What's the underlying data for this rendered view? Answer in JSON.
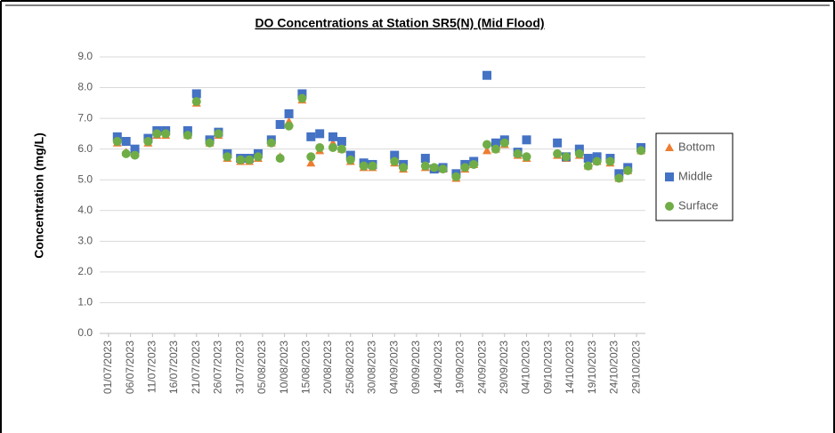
{
  "chart_data": {
    "type": "scatter",
    "title": "DO Concentrations at Station SR5(N) (Mid Flood)",
    "y_label": "Concentration (mg/L)",
    "x": [
      "03/07/2023",
      "05/07/2023",
      "07/07/2023",
      "10/07/2023",
      "12/07/2023",
      "14/07/2023",
      "19/07/2023",
      "21/07/2023",
      "24/07/2023",
      "26/07/2023",
      "28/07/2023",
      "31/07/2023",
      "02/08/2023",
      "04/08/2023",
      "07/08/2023",
      "09/08/2023",
      "11/08/2023",
      "14/08/2023",
      "16/08/2023",
      "18/08/2023",
      "21/08/2023",
      "23/08/2023",
      "25/08/2023",
      "28/08/2023",
      "30/08/2023",
      "04/09/2023",
      "06/09/2023",
      "11/09/2023",
      "13/09/2023",
      "15/09/2023",
      "18/09/2023",
      "20/09/2023",
      "22/09/2023",
      "25/09/2023",
      "27/09/2023",
      "29/09/2023",
      "02/10/2023",
      "04/10/2023",
      "11/10/2023",
      "13/10/2023",
      "16/10/2023",
      "18/10/2023",
      "20/10/2023",
      "23/10/2023",
      "25/10/2023",
      "27/10/2023",
      "30/10/2023"
    ],
    "series": [
      {
        "name": "Bottom",
        "color": "#ed7d31",
        "marker": "triangle",
        "values": [
          6.2,
          5.9,
          5.85,
          6.2,
          6.45,
          6.45,
          6.45,
          7.5,
          6.2,
          6.45,
          5.7,
          5.6,
          5.6,
          5.7,
          6.2,
          5.75,
          6.9,
          7.6,
          5.55,
          5.95,
          6.2,
          6.0,
          5.6,
          5.4,
          5.4,
          5.55,
          5.35,
          5.4,
          5.35,
          5.35,
          5.05,
          5.35,
          5.5,
          5.95,
          6.0,
          6.15,
          5.8,
          5.7,
          5.8,
          5.7,
          5.8,
          5.45,
          5.6,
          5.55,
          5.05,
          5.3,
          5.95
        ]
      },
      {
        "name": "Middle",
        "color": "#4472c4",
        "marker": "square",
        "values": [
          6.4,
          6.25,
          6.0,
          6.35,
          6.6,
          6.6,
          6.6,
          7.8,
          6.3,
          6.55,
          5.85,
          5.7,
          5.7,
          5.85,
          6.3,
          6.8,
          7.15,
          7.8,
          6.4,
          6.5,
          6.4,
          6.25,
          5.8,
          5.55,
          5.5,
          5.8,
          5.5,
          5.7,
          5.35,
          5.4,
          5.2,
          5.5,
          5.6,
          8.4,
          6.2,
          6.3,
          5.9,
          6.3,
          6.2,
          5.75,
          6.0,
          5.7,
          5.75,
          5.7,
          5.2,
          5.4,
          6.05
        ]
      },
      {
        "name": "Surface",
        "color": "#70ad47",
        "marker": "circle",
        "values": [
          6.25,
          5.85,
          5.8,
          6.25,
          6.5,
          6.5,
          6.45,
          7.55,
          6.2,
          6.5,
          5.75,
          5.65,
          5.65,
          5.75,
          6.2,
          5.7,
          6.75,
          7.65,
          5.75,
          6.05,
          6.05,
          6.0,
          5.65,
          5.45,
          5.45,
          5.6,
          5.4,
          5.45,
          5.4,
          5.35,
          5.1,
          5.4,
          5.5,
          6.15,
          6.0,
          6.2,
          5.85,
          5.75,
          5.85,
          5.75,
          5.85,
          5.45,
          5.6,
          5.6,
          5.05,
          5.3,
          5.95
        ]
      }
    ],
    "xlim": [
      "29/06/2023",
      "31/10/2023"
    ],
    "xticks": [
      "01/07/2023",
      "06/07/2023",
      "11/07/2023",
      "16/07/2023",
      "21/07/2023",
      "26/07/2023",
      "31/07/2023",
      "05/08/2023",
      "10/08/2023",
      "15/08/2023",
      "20/08/2023",
      "25/08/2023",
      "30/08/2023",
      "04/09/2023",
      "09/09/2023",
      "14/09/2023",
      "19/09/2023",
      "24/09/2023",
      "29/09/2023",
      "04/10/2023",
      "09/10/2023",
      "14/10/2023",
      "19/10/2023",
      "24/10/2023",
      "29/10/2023"
    ],
    "ylim": [
      0,
      9
    ],
    "yticks": [
      {
        "value": 0,
        "label": "0.0"
      },
      {
        "value": 1,
        "label": "1.0"
      },
      {
        "value": 2,
        "label": "2.0"
      },
      {
        "value": 3,
        "label": "3.0"
      },
      {
        "value": 4,
        "label": "4.0"
      },
      {
        "value": 5,
        "label": "5.0"
      },
      {
        "value": 6,
        "label": "6.0"
      },
      {
        "value": 7,
        "label": "7.0"
      },
      {
        "value": 8,
        "label": "8.0"
      },
      {
        "value": 9,
        "label": "9.0"
      }
    ],
    "grid": true,
    "legend": "right"
  }
}
